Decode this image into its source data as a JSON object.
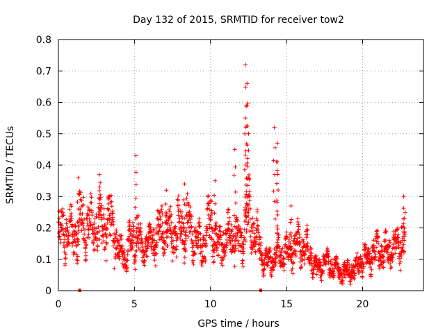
{
  "chart_data": {
    "type": "scatter",
    "title": "Day 132 of 2015, SRMTID for receiver tow2",
    "xlabel": "GPS time / hours",
    "ylabel": "SRMTID / TECUs",
    "xlim": [
      0,
      24
    ],
    "ylim": [
      0,
      0.8
    ],
    "xticks": [
      0,
      5,
      10,
      15,
      20
    ],
    "xtick_labels": [
      "0",
      "5",
      "10",
      "15",
      "20"
    ],
    "yticks": [
      0,
      0.1,
      0.2,
      0.3,
      0.4,
      0.5,
      0.6,
      0.7,
      0.8
    ],
    "ytick_labels": [
      "0",
      "0.1",
      "0.2",
      "0.3",
      "0.4",
      "0.5",
      "0.6",
      "0.7",
      "0.8"
    ],
    "grid": true,
    "marker": "plus",
    "color": "#ff0000",
    "series": [
      {
        "name": "SRMTID",
        "profile_hours": [
          0.0,
          0.5,
          1.0,
          1.5,
          2.0,
          2.5,
          3.0,
          3.5,
          4.0,
          4.5,
          5.0,
          5.5,
          6.0,
          6.5,
          7.0,
          7.5,
          8.0,
          8.5,
          9.0,
          9.5,
          10.0,
          10.5,
          11.0,
          11.5,
          12.0,
          12.5,
          13.0,
          13.5,
          14.0,
          14.5,
          15.0,
          15.5,
          16.0,
          16.5,
          17.0,
          17.5,
          18.0,
          18.5,
          19.0,
          19.5,
          20.0,
          20.5,
          21.0,
          21.5,
          22.0,
          22.5,
          22.8
        ],
        "profile_center": [
          0.18,
          0.2,
          0.17,
          0.22,
          0.2,
          0.22,
          0.21,
          0.22,
          0.12,
          0.12,
          0.19,
          0.14,
          0.15,
          0.18,
          0.2,
          0.18,
          0.2,
          0.21,
          0.16,
          0.14,
          0.22,
          0.13,
          0.17,
          0.18,
          0.15,
          0.24,
          0.18,
          0.09,
          0.1,
          0.12,
          0.12,
          0.14,
          0.15,
          0.12,
          0.07,
          0.09,
          0.08,
          0.06,
          0.06,
          0.07,
          0.1,
          0.11,
          0.13,
          0.12,
          0.13,
          0.16,
          0.18
        ],
        "spikes": [
          {
            "hour": 1.3,
            "value": 0.36
          },
          {
            "hour": 2.7,
            "value": 0.37
          },
          {
            "hour": 5.1,
            "value": 0.43
          },
          {
            "hour": 7.1,
            "value": 0.32
          },
          {
            "hour": 8.3,
            "value": 0.34
          },
          {
            "hour": 10.3,
            "value": 0.35
          },
          {
            "hour": 11.6,
            "value": 0.45
          },
          {
            "hour": 12.3,
            "value": 0.72
          },
          {
            "hour": 12.4,
            "value": 0.66
          },
          {
            "hour": 12.4,
            "value": 0.59
          },
          {
            "hour": 12.3,
            "value": 0.55
          },
          {
            "hour": 12.5,
            "value": 0.5
          },
          {
            "hour": 14.2,
            "value": 0.52
          },
          {
            "hour": 14.4,
            "value": 0.47
          },
          {
            "hour": 14.4,
            "value": 0.41
          },
          {
            "hour": 15.3,
            "value": 0.27
          },
          {
            "hour": 22.7,
            "value": 0.3
          }
        ],
        "dropouts_hours": [
          1.4,
          13.3
        ],
        "dropout_value": 0,
        "num_points": 1900
      }
    ]
  }
}
